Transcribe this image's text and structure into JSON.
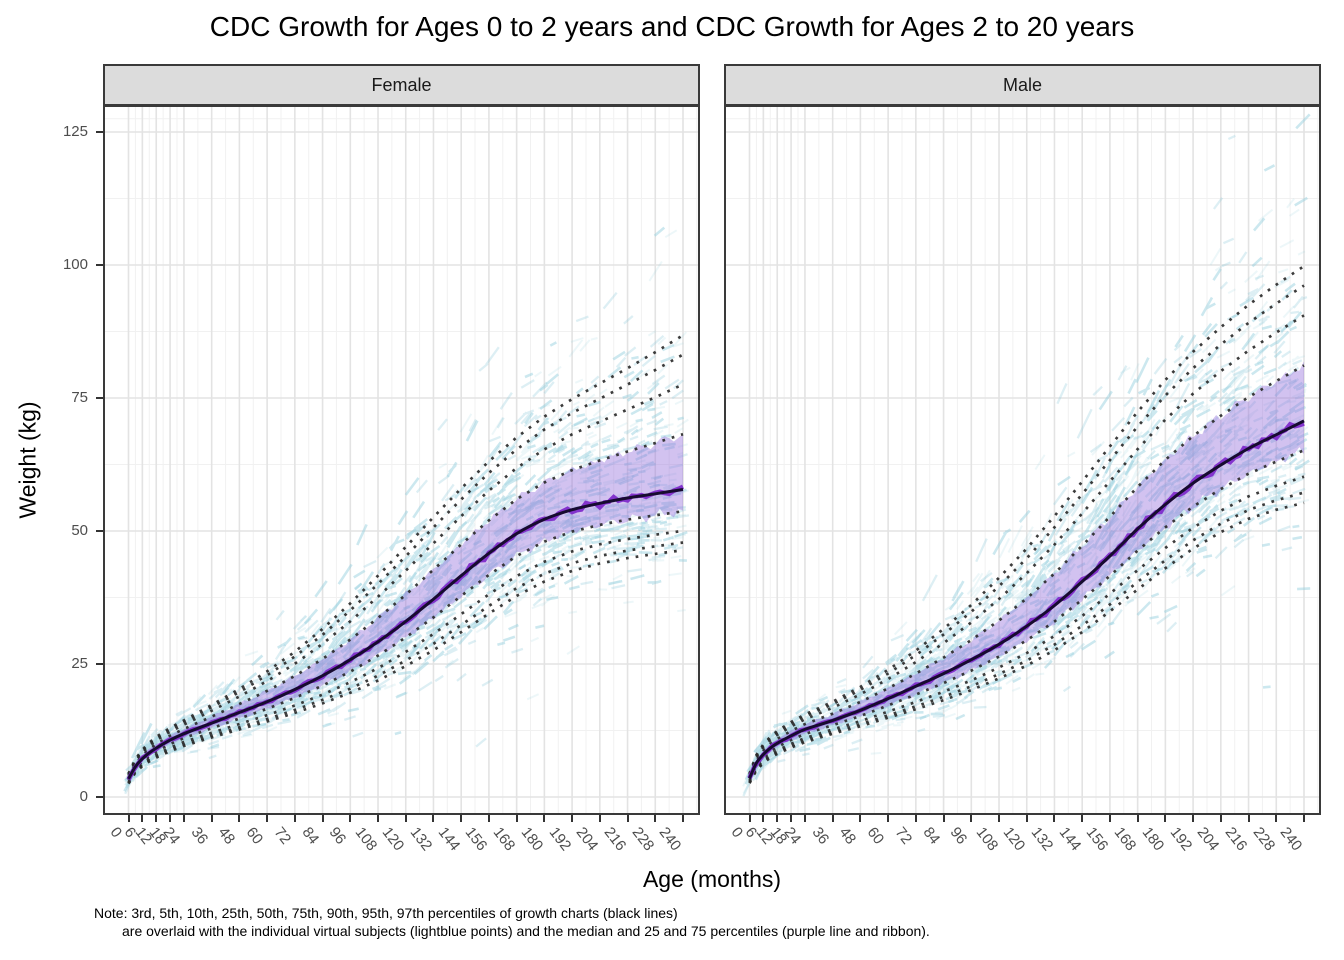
{
  "title": "CDC Growth for Ages 0 to 2 years and CDC Growth for Ages 2 to 20 years",
  "facets": [
    {
      "label": "Female"
    },
    {
      "label": "Male"
    }
  ],
  "x_axis": {
    "label": "Age (months)",
    "ticks": [
      0,
      6,
      12,
      18,
      24,
      36,
      48,
      60,
      72,
      84,
      96,
      108,
      120,
      132,
      144,
      156,
      168,
      180,
      192,
      204,
      216,
      228,
      240
    ]
  },
  "y_axis": {
    "label": "Weight (kg)",
    "ticks": [
      0,
      25,
      50,
      75,
      100,
      125
    ]
  },
  "note": {
    "line1": "Note: 3rd, 5th, 10th, 25th, 50th, 75th, 90th, 95th, 97th percentiles of growth charts (black lines)",
    "line2": "are overlaid with the individual virtual subjects (lightblue points) and the median and 25 and 75 percentiles (purple line and ribbon)."
  },
  "colors": {
    "strip_bg": "#dcdcdc",
    "panel_border": "#3a3a3a",
    "grid_major": "#e3e3e3",
    "grid_minor": "#f1f1f1",
    "percentile_dotted_line": "#2b2b2b",
    "chart_p50_line": "#170b30",
    "subject_median_line": "#7f2ccb",
    "subject_ribbon": "rgba(148,110,220,0.42)",
    "subject_points": "#8ecbdb",
    "axis_text": "#4d4d4d",
    "tick_mark": "#333333"
  },
  "chart_data": {
    "type": "line",
    "title": "CDC Growth for Ages 0 to 2 years and CDC Growth for Ages 2 to 20 years",
    "xlabel": "Age (months)",
    "ylabel": "Weight (kg)",
    "x_range_months": [
      0,
      240
    ],
    "y_range_kg": [
      0,
      130
    ],
    "x_ticks": [
      0,
      6,
      12,
      18,
      24,
      36,
      48,
      60,
      72,
      84,
      96,
      108,
      120,
      132,
      144,
      156,
      168,
      180,
      192,
      204,
      216,
      228,
      240
    ],
    "y_ticks": [
      0,
      25,
      50,
      75,
      100,
      125
    ],
    "grid": true,
    "legend": false,
    "percentiles_drawn": [
      "3rd",
      "5th",
      "10th",
      "25th",
      "50th",
      "75th",
      "90th",
      "95th",
      "97th"
    ],
    "overlay": {
      "points": "individual virtual subjects (lightblue)",
      "ribbon": "25th to 75th percentile of virtual subjects (purple)",
      "median_line": "median of virtual subjects (purple)"
    },
    "facets": [
      {
        "name": "Female",
        "ages_months": [
          0,
          3,
          6,
          9,
          12,
          18,
          24,
          36,
          48,
          60,
          72,
          84,
          96,
          108,
          120,
          132,
          144,
          156,
          168,
          180,
          192,
          204,
          216,
          228,
          240
        ],
        "p3": [
          2.5,
          4.6,
          5.8,
          6.7,
          7.4,
          8.6,
          9.6,
          11.2,
          12.7,
          14.2,
          15.8,
          17.6,
          19.6,
          21.9,
          24.6,
          27.6,
          31.0,
          34.5,
          37.8,
          40.5,
          42.5,
          43.9,
          44.9,
          45.7,
          46.4
        ],
        "p50": [
          3.4,
          5.7,
          7.2,
          8.3,
          9.2,
          10.7,
          11.9,
          13.9,
          15.9,
          17.9,
          20.2,
          22.8,
          25.8,
          29.2,
          33.0,
          37.2,
          41.6,
          45.8,
          49.5,
          52.2,
          54.0,
          55.2,
          56.2,
          57.0,
          57.8
        ],
        "p97": [
          4.4,
          7.1,
          8.9,
          10.2,
          11.3,
          13.0,
          14.4,
          17.3,
          20.3,
          23.6,
          27.3,
          31.6,
          36.4,
          41.6,
          47.0,
          52.6,
          58.0,
          63.1,
          67.6,
          71.5,
          74.8,
          77.7,
          80.6,
          83.6,
          86.8
        ]
      },
      {
        "name": "Male",
        "ages_months": [
          0,
          3,
          6,
          9,
          12,
          18,
          24,
          36,
          48,
          60,
          72,
          84,
          96,
          108,
          120,
          132,
          144,
          156,
          168,
          180,
          192,
          204,
          216,
          228,
          240
        ],
        "p3": [
          2.6,
          5.0,
          6.4,
          7.4,
          8.1,
          9.3,
          10.3,
          11.9,
          13.3,
          14.9,
          16.5,
          18.2,
          20.1,
          22.3,
          24.7,
          27.6,
          31.0,
          34.9,
          39.0,
          43.0,
          46.7,
          49.8,
          52.3,
          54.0,
          55.3
        ],
        "p50": [
          3.5,
          6.4,
          8.0,
          9.2,
          10.1,
          11.5,
          12.7,
          14.4,
          16.3,
          18.5,
          20.8,
          23.2,
          25.8,
          28.7,
          32.1,
          36.0,
          40.5,
          45.3,
          50.4,
          55.0,
          59.0,
          62.4,
          65.5,
          68.1,
          70.7
        ],
        "p97": [
          4.4,
          7.9,
          9.9,
          11.3,
          12.4,
          14.1,
          15.5,
          17.9,
          20.7,
          23.9,
          27.5,
          31.6,
          36.1,
          41.2,
          46.7,
          52.8,
          59.3,
          65.9,
          72.4,
          78.4,
          83.7,
          88.3,
          92.5,
          96.3,
          99.8
        ]
      }
    ]
  }
}
